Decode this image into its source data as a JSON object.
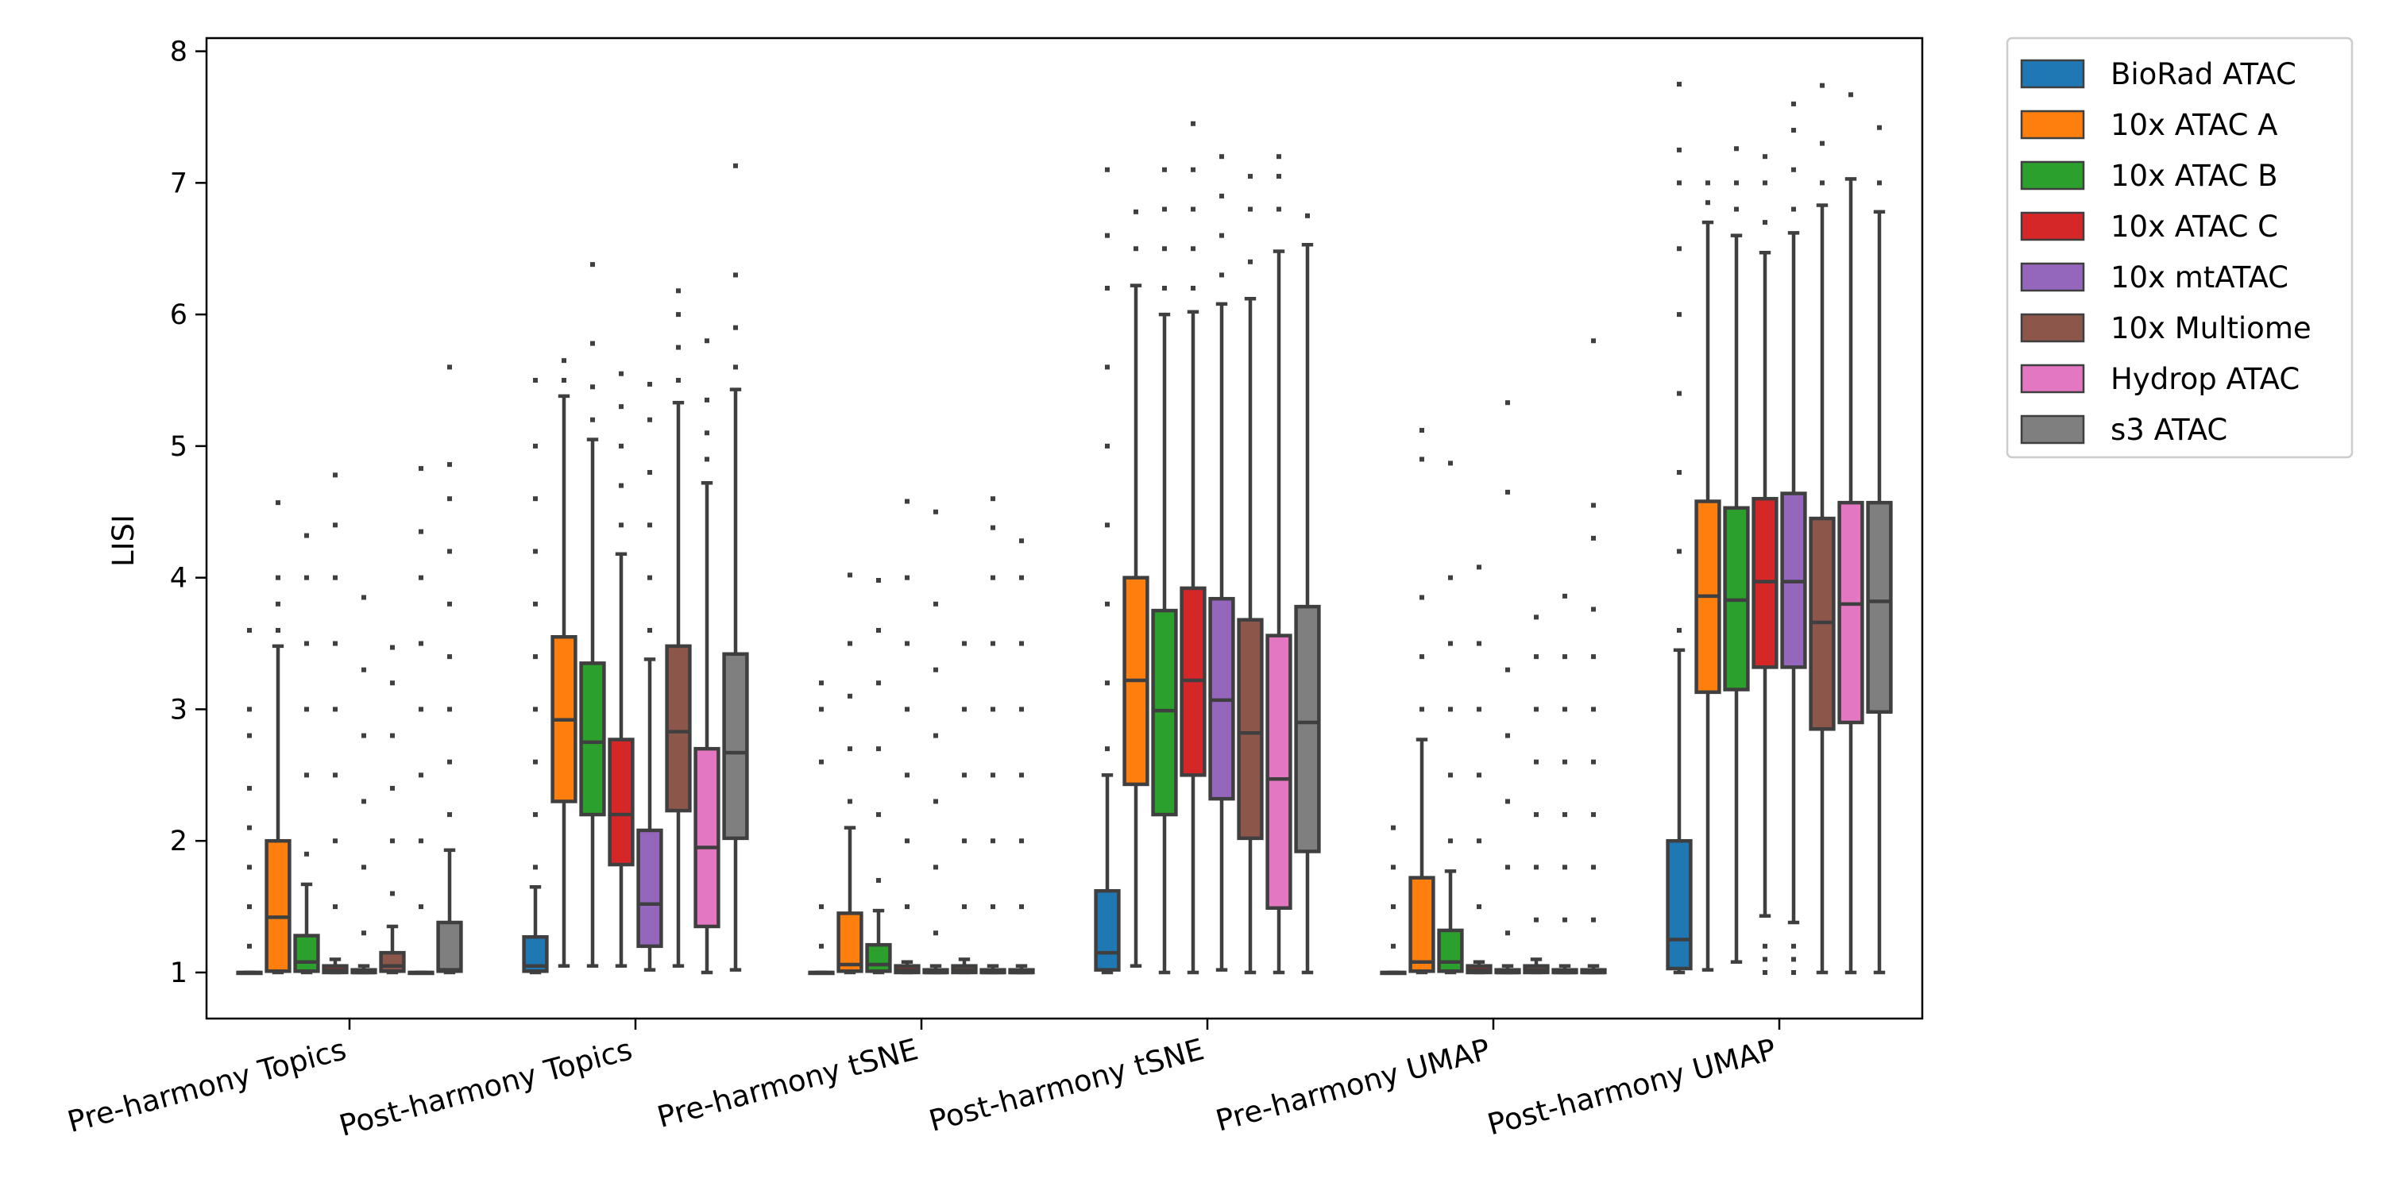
{
  "chart_data": {
    "type": "boxplot",
    "title": "",
    "xlabel": "",
    "ylabel": "LISI",
    "ylim": [
      0.65,
      8.1
    ],
    "yticks": [
      1,
      2,
      3,
      4,
      5,
      6,
      7,
      8
    ],
    "grid": false,
    "legend_position": "outside-top-right",
    "categories": [
      "Pre-harmony Topics",
      "Post-harmony Topics",
      "Pre-harmony tSNE",
      "Post-harmony tSNE",
      "Pre-harmony UMAP",
      "Post-harmony UMAP"
    ],
    "series": [
      {
        "name": "BioRad ATAC",
        "color": "#1f77b4",
        "boxes": [
          {
            "q1": 1.0,
            "median": 1.0,
            "q3": 1.0,
            "whislo": 1.0,
            "whishi": 1.0,
            "fliers": [
              1.2,
              1.5,
              1.8,
              2.1,
              2.4,
              2.8,
              3.0,
              3.6
            ]
          },
          {
            "q1": 1.01,
            "median": 1.05,
            "q3": 1.27,
            "whislo": 1.0,
            "whishi": 1.65,
            "fliers": [
              1.8,
              2.2,
              2.6,
              3.0,
              3.4,
              3.8,
              4.2,
              4.6,
              5.0,
              5.5
            ]
          },
          {
            "q1": 1.0,
            "median": 1.0,
            "q3": 1.0,
            "whislo": 1.0,
            "whishi": 1.0,
            "fliers": [
              1.2,
              1.5,
              2.6,
              3.0,
              3.2
            ]
          },
          {
            "q1": 1.02,
            "median": 1.15,
            "q3": 1.62,
            "whislo": 1.0,
            "whishi": 2.5,
            "fliers": [
              2.7,
              3.2,
              3.8,
              4.4,
              5.0,
              5.6,
              6.2,
              6.6,
              7.1
            ]
          },
          {
            "q1": 1.0,
            "median": 1.0,
            "q3": 1.0,
            "whislo": 1.0,
            "whishi": 1.0,
            "fliers": [
              1.2,
              1.5,
              1.8,
              2.1
            ]
          },
          {
            "q1": 1.03,
            "median": 1.25,
            "q3": 2.0,
            "whislo": 1.0,
            "whishi": 3.45,
            "fliers": [
              3.6,
              4.2,
              4.8,
              5.4,
              6.0,
              6.5,
              7.0,
              7.25,
              7.75
            ]
          }
        ]
      },
      {
        "name": "10x ATAC A",
        "color": "#ff7f0e",
        "boxes": [
          {
            "q1": 1.01,
            "median": 1.42,
            "q3": 2.0,
            "whislo": 1.0,
            "whishi": 3.48,
            "fliers": [
              3.6,
              3.8,
              4.0,
              4.57
            ]
          },
          {
            "q1": 2.3,
            "median": 2.92,
            "q3": 3.55,
            "whislo": 1.05,
            "whishi": 5.38,
            "fliers": [
              5.5,
              5.65
            ]
          },
          {
            "q1": 1.01,
            "median": 1.06,
            "q3": 1.45,
            "whislo": 1.0,
            "whishi": 2.1,
            "fliers": [
              2.3,
              2.7,
              3.1,
              3.5,
              4.02
            ]
          },
          {
            "q1": 2.43,
            "median": 3.22,
            "q3": 4.0,
            "whislo": 1.05,
            "whishi": 6.22,
            "fliers": [
              6.5,
              6.78
            ]
          },
          {
            "q1": 1.01,
            "median": 1.08,
            "q3": 1.72,
            "whislo": 1.0,
            "whishi": 2.77,
            "fliers": [
              3.0,
              3.4,
              3.85,
              4.9,
              5.12
            ]
          },
          {
            "q1": 3.13,
            "median": 3.86,
            "q3": 4.58,
            "whislo": 1.02,
            "whishi": 6.7,
            "fliers": [
              6.85,
              7.0
            ]
          }
        ]
      },
      {
        "name": "10x ATAC B",
        "color": "#2ca02c",
        "boxes": [
          {
            "q1": 1.01,
            "median": 1.08,
            "q3": 1.28,
            "whislo": 1.0,
            "whishi": 1.67,
            "fliers": [
              1.9,
              2.5,
              3.0,
              3.5,
              4.0,
              4.32
            ]
          },
          {
            "q1": 2.2,
            "median": 2.75,
            "q3": 3.35,
            "whislo": 1.05,
            "whishi": 5.05,
            "fliers": [
              5.2,
              5.45,
              5.78,
              6.38
            ]
          },
          {
            "q1": 1.01,
            "median": 1.06,
            "q3": 1.21,
            "whislo": 1.0,
            "whishi": 1.47,
            "fliers": [
              1.7,
              2.2,
              2.7,
              3.2,
              3.6,
              3.98
            ]
          },
          {
            "q1": 2.2,
            "median": 2.99,
            "q3": 3.75,
            "whislo": 1.0,
            "whishi": 6.0,
            "fliers": [
              6.2,
              6.5,
              6.8,
              7.1
            ]
          },
          {
            "q1": 1.01,
            "median": 1.08,
            "q3": 1.32,
            "whislo": 1.0,
            "whishi": 1.77,
            "fliers": [
              2.0,
              2.5,
              3.0,
              3.5,
              4.0,
              4.87
            ]
          },
          {
            "q1": 3.15,
            "median": 3.83,
            "q3": 4.53,
            "whislo": 1.08,
            "whishi": 6.6,
            "fliers": [
              6.8,
              7.0,
              7.26
            ]
          }
        ]
      },
      {
        "name": "10x ATAC C",
        "color": "#d62728",
        "boxes": [
          {
            "q1": 1.0,
            "median": 1.02,
            "q3": 1.05,
            "whislo": 1.0,
            "whishi": 1.1,
            "fliers": [
              1.5,
              2.0,
              2.5,
              3.0,
              3.5,
              4.0,
              4.4,
              4.78
            ]
          },
          {
            "q1": 1.82,
            "median": 2.2,
            "q3": 2.77,
            "whislo": 1.05,
            "whishi": 4.18,
            "fliers": [
              4.4,
              4.7,
              5.0,
              5.3,
              5.55
            ]
          },
          {
            "q1": 1.0,
            "median": 1.02,
            "q3": 1.05,
            "whislo": 1.0,
            "whishi": 1.08,
            "fliers": [
              1.5,
              2.0,
              2.5,
              3.0,
              3.5,
              4.0,
              4.58
            ]
          },
          {
            "q1": 2.5,
            "median": 3.22,
            "q3": 3.92,
            "whislo": 1.0,
            "whishi": 6.02,
            "fliers": [
              6.2,
              6.5,
              6.8,
              7.1,
              7.45
            ]
          },
          {
            "q1": 1.0,
            "median": 1.02,
            "q3": 1.05,
            "whislo": 1.0,
            "whishi": 1.08,
            "fliers": [
              1.5,
              2.0,
              2.5,
              3.0,
              3.5,
              4.08
            ]
          },
          {
            "q1": 3.32,
            "median": 3.97,
            "q3": 4.6,
            "whislo": 1.43,
            "whishi": 6.47,
            "fliers": [
              1.0,
              1.1,
              1.2,
              6.7,
              7.0,
              7.2
            ]
          }
        ]
      },
      {
        "name": "10x mtATAC",
        "color": "#9467bd",
        "boxes": [
          {
            "q1": 1.0,
            "median": 1.0,
            "q3": 1.02,
            "whislo": 1.0,
            "whishi": 1.05,
            "fliers": [
              1.3,
              1.8,
              2.3,
              2.8,
              3.3,
              3.85
            ]
          },
          {
            "q1": 1.2,
            "median": 1.52,
            "q3": 2.08,
            "whislo": 1.02,
            "whishi": 3.38,
            "fliers": [
              3.6,
              4.0,
              4.4,
              4.8,
              5.2,
              5.47
            ]
          },
          {
            "q1": 1.0,
            "median": 1.0,
            "q3": 1.02,
            "whislo": 1.0,
            "whishi": 1.05,
            "fliers": [
              1.3,
              1.8,
              2.3,
              2.8,
              3.3,
              3.8,
              4.5
            ]
          },
          {
            "q1": 2.32,
            "median": 3.07,
            "q3": 3.84,
            "whislo": 1.02,
            "whishi": 6.08,
            "fliers": [
              6.3,
              6.6,
              6.9,
              7.2
            ]
          },
          {
            "q1": 1.0,
            "median": 1.0,
            "q3": 1.02,
            "whislo": 1.0,
            "whishi": 1.05,
            "fliers": [
              1.3,
              1.8,
              2.3,
              2.8,
              3.3,
              4.65,
              5.33
            ]
          },
          {
            "q1": 3.32,
            "median": 3.97,
            "q3": 4.64,
            "whislo": 1.38,
            "whishi": 6.62,
            "fliers": [
              1.0,
              1.1,
              1.2,
              6.8,
              7.1,
              7.4,
              7.6
            ]
          }
        ]
      },
      {
        "name": "10x Multiome",
        "color": "#8c564b",
        "boxes": [
          {
            "q1": 1.01,
            "median": 1.05,
            "q3": 1.15,
            "whislo": 1.0,
            "whishi": 1.35,
            "fliers": [
              1.6,
              2.0,
              2.4,
              2.8,
              3.2,
              3.47
            ]
          },
          {
            "q1": 2.23,
            "median": 2.83,
            "q3": 3.48,
            "whislo": 1.05,
            "whishi": 5.33,
            "fliers": [
              5.5,
              5.75,
              6.0,
              6.18
            ]
          },
          {
            "q1": 1.0,
            "median": 1.02,
            "q3": 1.05,
            "whislo": 1.0,
            "whishi": 1.1,
            "fliers": [
              1.5,
              2.0,
              2.5,
              3.0,
              3.5
            ]
          },
          {
            "q1": 2.02,
            "median": 2.82,
            "q3": 3.68,
            "whislo": 1.0,
            "whishi": 6.12,
            "fliers": [
              6.4,
              6.8,
              7.05
            ]
          },
          {
            "q1": 1.0,
            "median": 1.02,
            "q3": 1.05,
            "whislo": 1.0,
            "whishi": 1.1,
            "fliers": [
              1.4,
              1.8,
              2.2,
              2.6,
              3.0,
              3.4,
              3.7
            ]
          },
          {
            "q1": 2.85,
            "median": 3.66,
            "q3": 4.45,
            "whislo": 1.0,
            "whishi": 6.83,
            "fliers": [
              7.0,
              7.3,
              7.74
            ]
          }
        ]
      },
      {
        "name": "Hydrop ATAC",
        "color": "#e377c2",
        "boxes": [
          {
            "q1": 1.0,
            "median": 1.0,
            "q3": 1.0,
            "whislo": 1.0,
            "whishi": 1.0,
            "fliers": [
              1.5,
              2.0,
              2.5,
              3.0,
              3.5,
              4.0,
              4.35,
              4.83
            ]
          },
          {
            "q1": 1.35,
            "median": 1.95,
            "q3": 2.7,
            "whislo": 1.0,
            "whishi": 4.72,
            "fliers": [
              4.9,
              5.1,
              5.35,
              5.8
            ]
          },
          {
            "q1": 1.0,
            "median": 1.0,
            "q3": 1.02,
            "whislo": 1.0,
            "whishi": 1.05,
            "fliers": [
              1.5,
              2.0,
              2.5,
              3.0,
              3.5,
              4.0,
              4.38,
              4.6
            ]
          },
          {
            "q1": 1.49,
            "median": 2.47,
            "q3": 3.56,
            "whislo": 1.0,
            "whishi": 6.48,
            "fliers": [
              6.8,
              7.05,
              7.2
            ]
          },
          {
            "q1": 1.0,
            "median": 1.0,
            "q3": 1.02,
            "whislo": 1.0,
            "whishi": 1.05,
            "fliers": [
              1.4,
              1.8,
              2.2,
              2.6,
              3.0,
              3.4,
              3.86
            ]
          },
          {
            "q1": 2.9,
            "median": 3.8,
            "q3": 4.57,
            "whislo": 1.0,
            "whishi": 7.03,
            "fliers": [
              7.67
            ]
          }
        ]
      },
      {
        "name": "s3 ATAC",
        "color": "#7f7f7f",
        "boxes": [
          {
            "q1": 1.01,
            "median": 1.02,
            "q3": 1.38,
            "whislo": 1.0,
            "whishi": 1.93,
            "fliers": [
              2.2,
              2.6,
              3.0,
              3.4,
              3.8,
              4.2,
              4.6,
              4.86,
              5.6
            ]
          },
          {
            "q1": 2.02,
            "median": 2.67,
            "q3": 3.42,
            "whislo": 1.02,
            "whishi": 5.43,
            "fliers": [
              5.6,
              5.9,
              6.3,
              7.13
            ]
          },
          {
            "q1": 1.0,
            "median": 1.0,
            "q3": 1.02,
            "whislo": 1.0,
            "whishi": 1.05,
            "fliers": [
              1.5,
              2.0,
              2.5,
              3.0,
              3.5,
              4.0,
              4.28
            ]
          },
          {
            "q1": 1.92,
            "median": 2.9,
            "q3": 3.78,
            "whislo": 1.0,
            "whishi": 6.53,
            "fliers": [
              6.75
            ]
          },
          {
            "q1": 1.0,
            "median": 1.0,
            "q3": 1.02,
            "whislo": 1.0,
            "whishi": 1.05,
            "fliers": [
              1.4,
              1.8,
              2.2,
              2.6,
              3.0,
              3.4,
              3.76,
              4.3,
              4.55,
              5.8
            ]
          },
          {
            "q1": 2.98,
            "median": 3.82,
            "q3": 4.57,
            "whislo": 1.0,
            "whishi": 6.78,
            "fliers": [
              7.0,
              7.42
            ]
          }
        ]
      }
    ]
  }
}
